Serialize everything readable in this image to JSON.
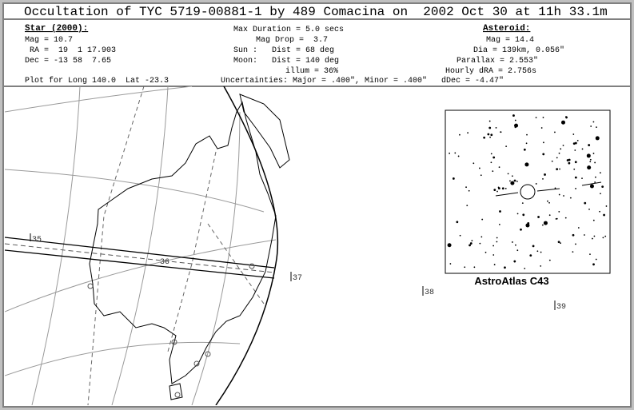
{
  "title": "Occultation of TYC 5719-00881-1 by 489 Comacina on  2002 Oct 30 at 11h 33.1m",
  "star": {
    "heading": "Star (2000):",
    "lines": [
      "Mag = 10.7",
      "RA =  19  1 17.903",
      "Dec = -13 58  7.65"
    ]
  },
  "circumstances": {
    "lines": [
      "Max Duration = 5.0 secs",
      "Mag Drop =  3.7",
      "Sun :   Dist = 68 deg",
      "Moon:   Dist = 140 deg",
      "illum = 36%"
    ]
  },
  "asteroid": {
    "heading": "Asteroid:",
    "lines": [
      "Mag = 14.4",
      "Dia = 139km, 0.056\"",
      "Parallax = 2.553\"",
      "Hourly dRA = 2.756s"
    ]
  },
  "footer": {
    "location": "Plot for Long 140.0  Lat -23.3",
    "uncertainties": "Uncertainties: Major = .400\", Minor = .400\"   dDec = -4.47\""
  },
  "map": {
    "time_marks": [
      "35",
      "36",
      "37",
      "38",
      "39"
    ]
  },
  "star_chart": {
    "caption": "AstroAtlas C43"
  }
}
